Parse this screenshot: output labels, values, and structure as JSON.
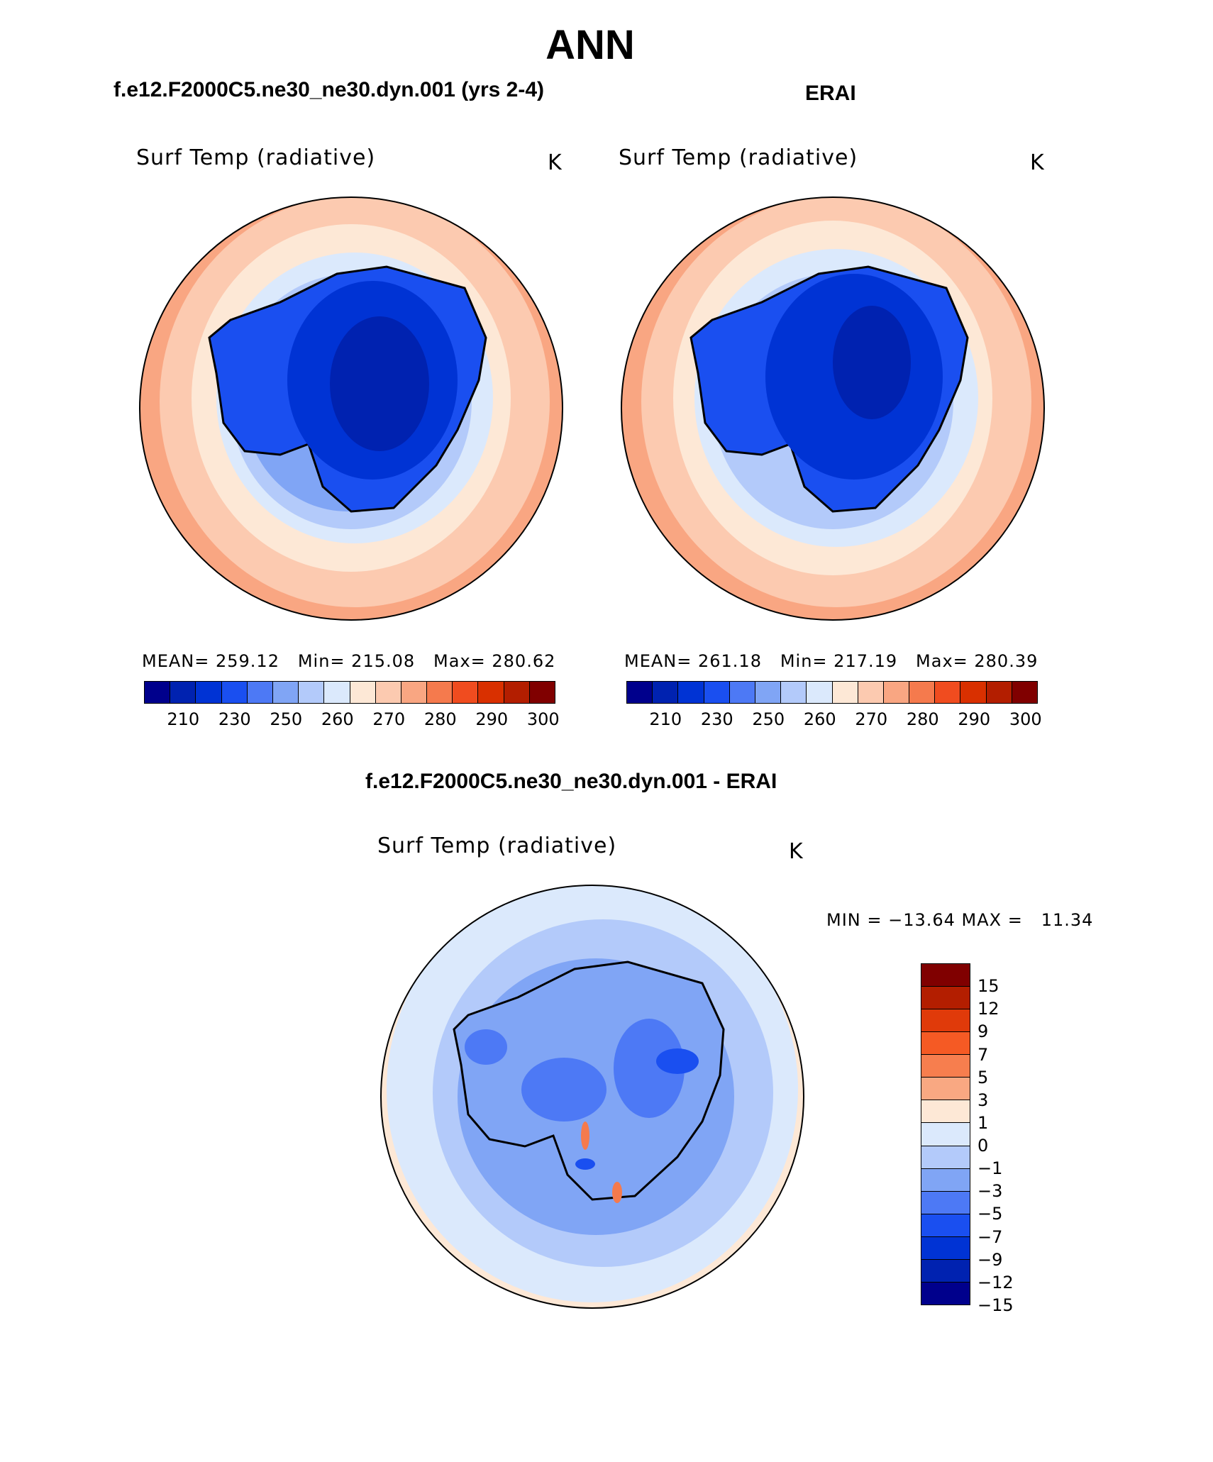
{
  "main_title": "ANN",
  "panel_left": {
    "case_title": "f.e12.F2000C5.ne30_ne30.dyn.001 (yrs 2-4)",
    "var_title": "Surf Temp (radiative)",
    "units": "K",
    "stats": "MEAN= 259.12   Min= 215.08   Max= 280.62"
  },
  "panel_right": {
    "case_title": "ERAI",
    "var_title": "Surf Temp (radiative)",
    "units": "K",
    "stats": "MEAN= 261.18   Min= 217.19   Max= 280.39"
  },
  "panel_diff": {
    "case_title": "f.e12.F2000C5.ne30_ne30.dyn.001 - ERAI",
    "var_title": "Surf Temp (radiative)",
    "units": "K",
    "minmax": "MIN = −13.64 MAX =   11.34"
  },
  "abs_colorbar": {
    "colors": [
      "#00008c",
      "#0022b0",
      "#0033d4",
      "#1a4ff0",
      "#4d79f5",
      "#80a5f5",
      "#b3cafa",
      "#dbe9fc",
      "#fde8d6",
      "#fccab0",
      "#f9a682",
      "#f57a4d",
      "#f04c1f",
      "#d93000",
      "#b31e00",
      "#800000"
    ],
    "labels": [
      "210",
      "230",
      "250",
      "260",
      "270",
      "280",
      "290",
      "300"
    ]
  },
  "diff_colorbar": {
    "colors": [
      "#800000",
      "#b31e00",
      "#e03a0a",
      "#f55a24",
      "#f77e4e",
      "#f9a882",
      "#fde8d6",
      "#dbe9fc",
      "#b3cafa",
      "#80a5f5",
      "#4d79f5",
      "#1a4ff0",
      "#0033d4",
      "#0022b0",
      "#00008c"
    ],
    "labels": [
      "15",
      "12",
      "9",
      "7",
      "5",
      "3",
      "1",
      "0",
      "−1",
      "−3",
      "−5",
      "−7",
      "−9",
      "−12",
      "−15"
    ]
  },
  "map_colors": {
    "outer": "#f9a682",
    "band1": "#fccab0",
    "band2": "#fde8d6",
    "band3": "#dbe9fc",
    "band4": "#b3cafa",
    "band5": "#80a5f5",
    "land1": "#1a4ff0",
    "land2": "#0033d4",
    "land3": "#0022b0",
    "diff_bg": "#fde8d6",
    "diff_ring": "#dbe9fc",
    "diff_mid": "#b3cafa",
    "diff_in": "#80a5f5",
    "diff_strong": "#4d79f5",
    "diff_deep": "#1a4ff0",
    "diff_hot": "#f57a4d"
  }
}
